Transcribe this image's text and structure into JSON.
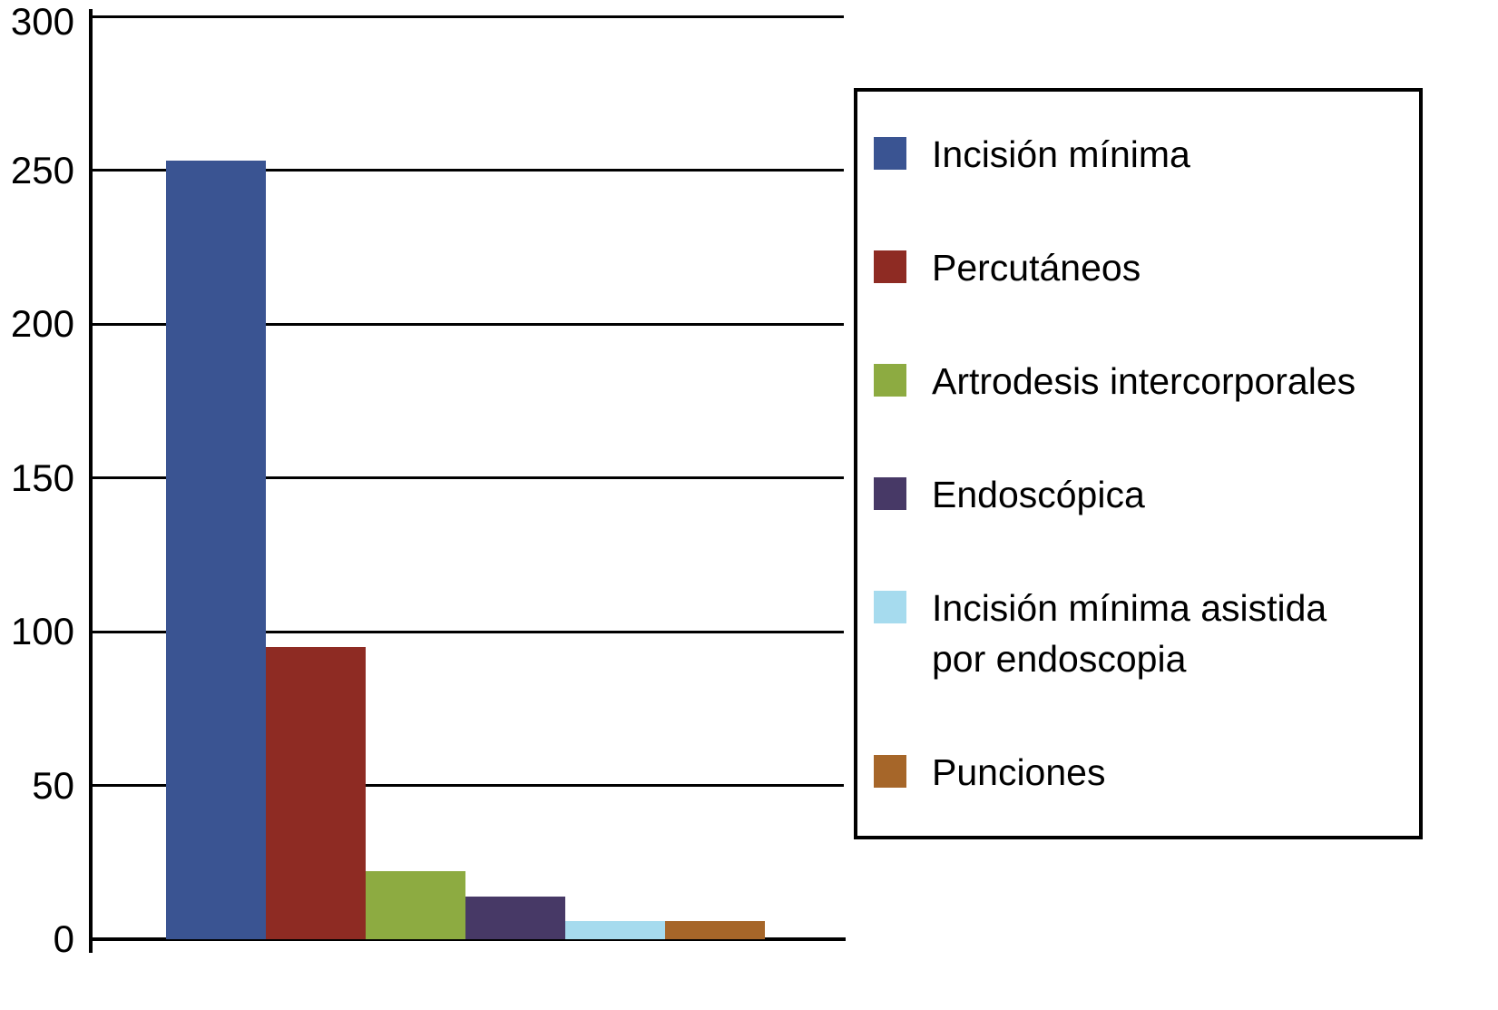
{
  "chart_data": {
    "type": "bar",
    "title": "",
    "xlabel": "",
    "ylabel": "",
    "categories": [
      "Incisión mínima",
      "Percutáneos",
      "Artrodesis intercorporales",
      "Endoscópica",
      "Incisión mínima asistida por endoscopia",
      "Punciones"
    ],
    "values": [
      253,
      95,
      22,
      14,
      6,
      6
    ],
    "colors": [
      "#3a5492",
      "#8e2b23",
      "#8dab41",
      "#473966",
      "#a6dbee",
      "#a66629"
    ],
    "ylim": [
      0,
      300
    ],
    "yticks": [
      0,
      50,
      100,
      150,
      200,
      250,
      300
    ],
    "grid": true,
    "legend_position": "right",
    "legend": [
      {
        "label": "Incisión mínima",
        "color": "#3a5492"
      },
      {
        "label": "Percutáneos",
        "color": "#8e2b23"
      },
      {
        "label": "Artrodesis intercorporales",
        "color": "#8dab41"
      },
      {
        "label": "Endoscópica",
        "color": "#473966"
      },
      {
        "label": "Incisión mínima asistida por endoscopia",
        "color": "#a6dbee"
      },
      {
        "label": "Punciones",
        "color": "#a66629"
      }
    ],
    "axis_color": "#000000",
    "background_color": "#ffffff"
  }
}
